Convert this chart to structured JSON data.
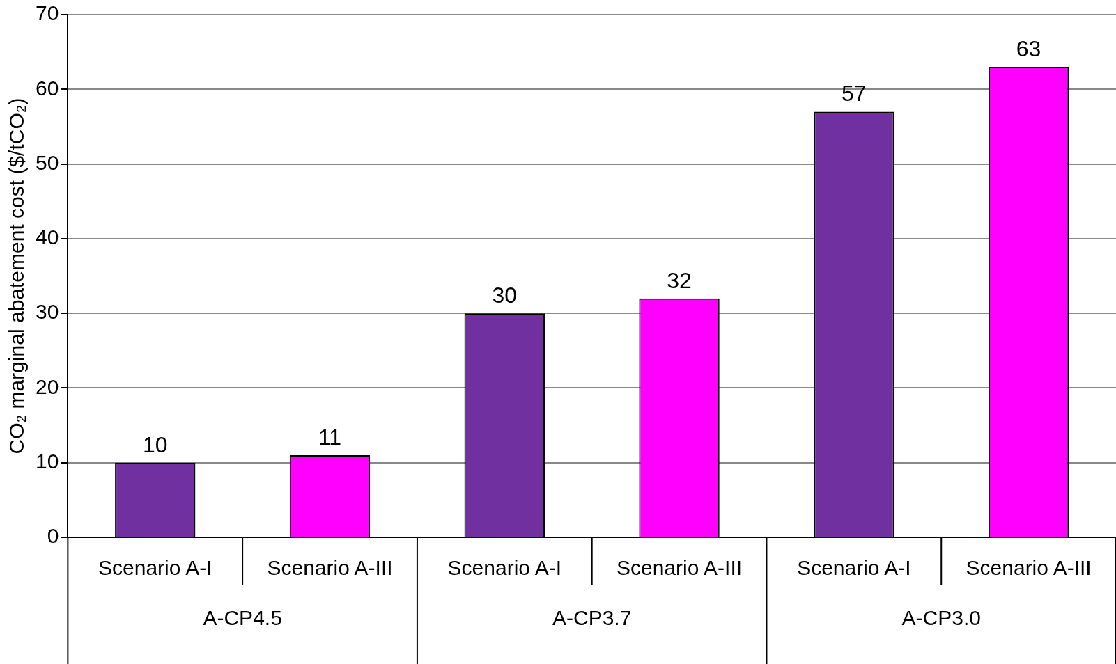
{
  "chart_data": {
    "type": "bar",
    "ylabel": "CO₂ marginal abatement cost ($/tCO₂)",
    "categories": [
      "Scenario A-I",
      "Scenario A-III",
      "Scenario A-I",
      "Scenario A-III",
      "Scenario A-I",
      "Scenario A-III"
    ],
    "values": [
      10,
      11,
      30,
      32,
      57,
      63
    ],
    "colors": [
      "#7030a0",
      "#ff00ff",
      "#7030a0",
      "#ff00ff",
      "#7030a0",
      "#ff00ff"
    ],
    "ylim": [
      0,
      70
    ],
    "yticks": [
      0,
      10,
      20,
      30,
      40,
      50,
      60,
      70
    ],
    "grid": "y",
    "legend": false,
    "data_labels": true,
    "annotations": [
      "A-CP4.5",
      "A-CP3.7",
      "A-CP3.0"
    ]
  }
}
